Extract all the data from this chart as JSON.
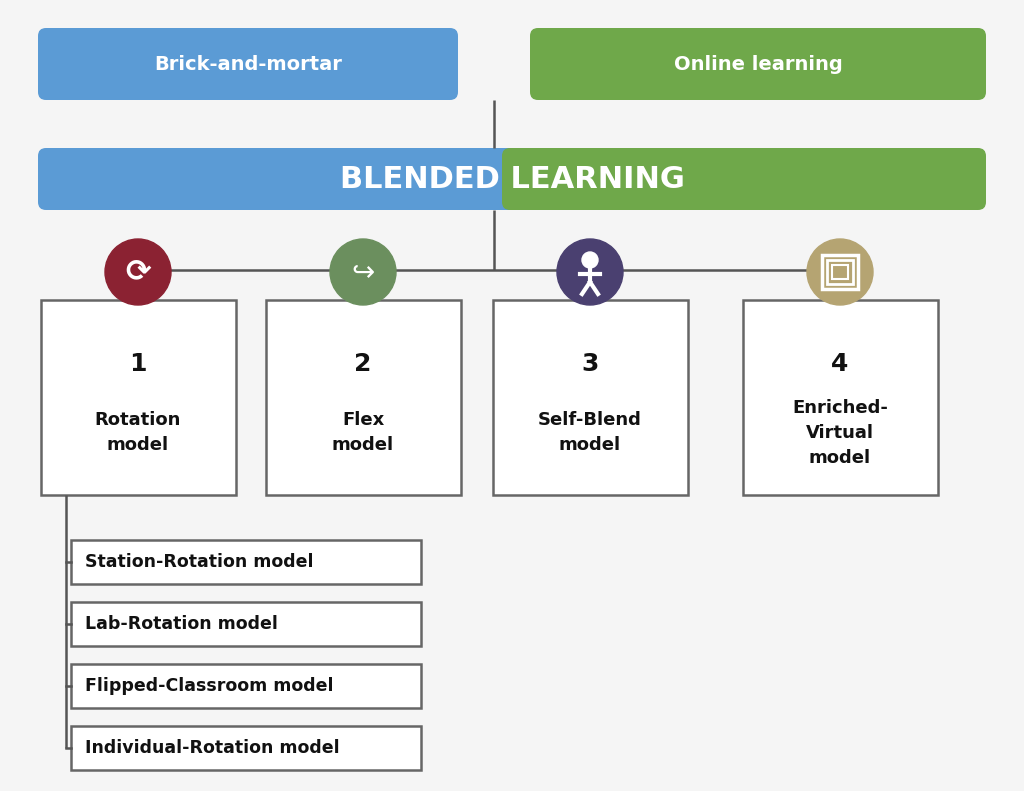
{
  "bg_color": "#f5f5f5",
  "brick_mortar_color": "#5b9bd5",
  "online_learning_color": "#6fa84a",
  "blended_left_color": "#5b9bd5",
  "blended_right_color": "#6fa84a",
  "text_color_white": "#ffffff",
  "text_color_dark": "#111111",
  "box_border_color": "#666666",
  "title_top_left": "Brick-and-mortar",
  "title_top_right": "Online learning",
  "title_main": "BLENDED LEARNING",
  "models": [
    {
      "num": "1",
      "name": "Rotation\nmodel",
      "icon_color": "#8b2232"
    },
    {
      "num": "2",
      "name": "Flex\nmodel",
      "icon_color": "#6b8f5e"
    },
    {
      "num": "3",
      "name": "Self-Blend\nmodel",
      "icon_color": "#4a4070"
    },
    {
      "num": "4",
      "name": "Enriched-\nVirtual\nmodel",
      "icon_color": "#b5a472"
    }
  ],
  "sub_models": [
    "Station-Rotation model",
    "Lab-Rotation model",
    "Flipped-Classroom model",
    "Individual-Rotation model"
  ],
  "line_color": "#555555"
}
